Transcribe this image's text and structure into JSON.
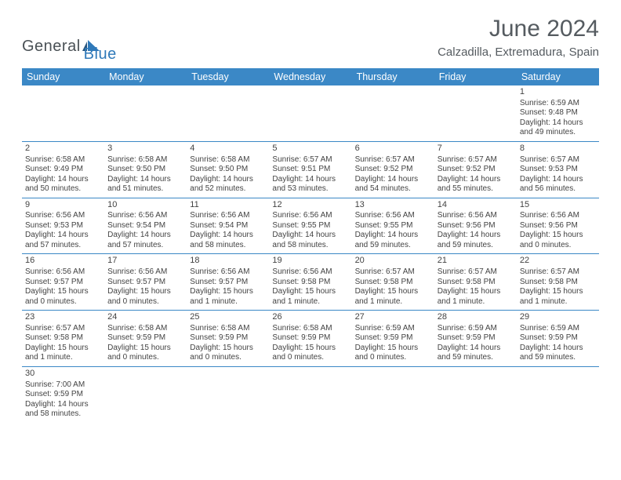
{
  "brand": {
    "part1": "General",
    "part2": "Blue",
    "color_dark": "#4a5156",
    "color_blue": "#2f79b9"
  },
  "title": "June 2024",
  "location": "Calzadilla, Extremadura, Spain",
  "colors": {
    "header_bg": "#3b88c6",
    "header_text": "#ffffff",
    "rule": "#3b88c6",
    "text": "#434343"
  },
  "weekdays": [
    "Sunday",
    "Monday",
    "Tuesday",
    "Wednesday",
    "Thursday",
    "Friday",
    "Saturday"
  ],
  "weeks": [
    [
      null,
      null,
      null,
      null,
      null,
      null,
      {
        "n": "1",
        "sr": "Sunrise: 6:59 AM",
        "ss": "Sunset: 9:48 PM",
        "d1": "Daylight: 14 hours",
        "d2": "and 49 minutes."
      }
    ],
    [
      {
        "n": "2",
        "sr": "Sunrise: 6:58 AM",
        "ss": "Sunset: 9:49 PM",
        "d1": "Daylight: 14 hours",
        "d2": "and 50 minutes."
      },
      {
        "n": "3",
        "sr": "Sunrise: 6:58 AM",
        "ss": "Sunset: 9:50 PM",
        "d1": "Daylight: 14 hours",
        "d2": "and 51 minutes."
      },
      {
        "n": "4",
        "sr": "Sunrise: 6:58 AM",
        "ss": "Sunset: 9:50 PM",
        "d1": "Daylight: 14 hours",
        "d2": "and 52 minutes."
      },
      {
        "n": "5",
        "sr": "Sunrise: 6:57 AM",
        "ss": "Sunset: 9:51 PM",
        "d1": "Daylight: 14 hours",
        "d2": "and 53 minutes."
      },
      {
        "n": "6",
        "sr": "Sunrise: 6:57 AM",
        "ss": "Sunset: 9:52 PM",
        "d1": "Daylight: 14 hours",
        "d2": "and 54 minutes."
      },
      {
        "n": "7",
        "sr": "Sunrise: 6:57 AM",
        "ss": "Sunset: 9:52 PM",
        "d1": "Daylight: 14 hours",
        "d2": "and 55 minutes."
      },
      {
        "n": "8",
        "sr": "Sunrise: 6:57 AM",
        "ss": "Sunset: 9:53 PM",
        "d1": "Daylight: 14 hours",
        "d2": "and 56 minutes."
      }
    ],
    [
      {
        "n": "9",
        "sr": "Sunrise: 6:56 AM",
        "ss": "Sunset: 9:53 PM",
        "d1": "Daylight: 14 hours",
        "d2": "and 57 minutes."
      },
      {
        "n": "10",
        "sr": "Sunrise: 6:56 AM",
        "ss": "Sunset: 9:54 PM",
        "d1": "Daylight: 14 hours",
        "d2": "and 57 minutes."
      },
      {
        "n": "11",
        "sr": "Sunrise: 6:56 AM",
        "ss": "Sunset: 9:54 PM",
        "d1": "Daylight: 14 hours",
        "d2": "and 58 minutes."
      },
      {
        "n": "12",
        "sr": "Sunrise: 6:56 AM",
        "ss": "Sunset: 9:55 PM",
        "d1": "Daylight: 14 hours",
        "d2": "and 58 minutes."
      },
      {
        "n": "13",
        "sr": "Sunrise: 6:56 AM",
        "ss": "Sunset: 9:55 PM",
        "d1": "Daylight: 14 hours",
        "d2": "and 59 minutes."
      },
      {
        "n": "14",
        "sr": "Sunrise: 6:56 AM",
        "ss": "Sunset: 9:56 PM",
        "d1": "Daylight: 14 hours",
        "d2": "and 59 minutes."
      },
      {
        "n": "15",
        "sr": "Sunrise: 6:56 AM",
        "ss": "Sunset: 9:56 PM",
        "d1": "Daylight: 15 hours",
        "d2": "and 0 minutes."
      }
    ],
    [
      {
        "n": "16",
        "sr": "Sunrise: 6:56 AM",
        "ss": "Sunset: 9:57 PM",
        "d1": "Daylight: 15 hours",
        "d2": "and 0 minutes."
      },
      {
        "n": "17",
        "sr": "Sunrise: 6:56 AM",
        "ss": "Sunset: 9:57 PM",
        "d1": "Daylight: 15 hours",
        "d2": "and 0 minutes."
      },
      {
        "n": "18",
        "sr": "Sunrise: 6:56 AM",
        "ss": "Sunset: 9:57 PM",
        "d1": "Daylight: 15 hours",
        "d2": "and 1 minute."
      },
      {
        "n": "19",
        "sr": "Sunrise: 6:56 AM",
        "ss": "Sunset: 9:58 PM",
        "d1": "Daylight: 15 hours",
        "d2": "and 1 minute."
      },
      {
        "n": "20",
        "sr": "Sunrise: 6:57 AM",
        "ss": "Sunset: 9:58 PM",
        "d1": "Daylight: 15 hours",
        "d2": "and 1 minute."
      },
      {
        "n": "21",
        "sr": "Sunrise: 6:57 AM",
        "ss": "Sunset: 9:58 PM",
        "d1": "Daylight: 15 hours",
        "d2": "and 1 minute."
      },
      {
        "n": "22",
        "sr": "Sunrise: 6:57 AM",
        "ss": "Sunset: 9:58 PM",
        "d1": "Daylight: 15 hours",
        "d2": "and 1 minute."
      }
    ],
    [
      {
        "n": "23",
        "sr": "Sunrise: 6:57 AM",
        "ss": "Sunset: 9:58 PM",
        "d1": "Daylight: 15 hours",
        "d2": "and 1 minute."
      },
      {
        "n": "24",
        "sr": "Sunrise: 6:58 AM",
        "ss": "Sunset: 9:59 PM",
        "d1": "Daylight: 15 hours",
        "d2": "and 0 minutes."
      },
      {
        "n": "25",
        "sr": "Sunrise: 6:58 AM",
        "ss": "Sunset: 9:59 PM",
        "d1": "Daylight: 15 hours",
        "d2": "and 0 minutes."
      },
      {
        "n": "26",
        "sr": "Sunrise: 6:58 AM",
        "ss": "Sunset: 9:59 PM",
        "d1": "Daylight: 15 hours",
        "d2": "and 0 minutes."
      },
      {
        "n": "27",
        "sr": "Sunrise: 6:59 AM",
        "ss": "Sunset: 9:59 PM",
        "d1": "Daylight: 15 hours",
        "d2": "and 0 minutes."
      },
      {
        "n": "28",
        "sr": "Sunrise: 6:59 AM",
        "ss": "Sunset: 9:59 PM",
        "d1": "Daylight: 14 hours",
        "d2": "and 59 minutes."
      },
      {
        "n": "29",
        "sr": "Sunrise: 6:59 AM",
        "ss": "Sunset: 9:59 PM",
        "d1": "Daylight: 14 hours",
        "d2": "and 59 minutes."
      }
    ],
    [
      {
        "n": "30",
        "sr": "Sunrise: 7:00 AM",
        "ss": "Sunset: 9:59 PM",
        "d1": "Daylight: 14 hours",
        "d2": "and 58 minutes."
      },
      null,
      null,
      null,
      null,
      null,
      null
    ]
  ]
}
